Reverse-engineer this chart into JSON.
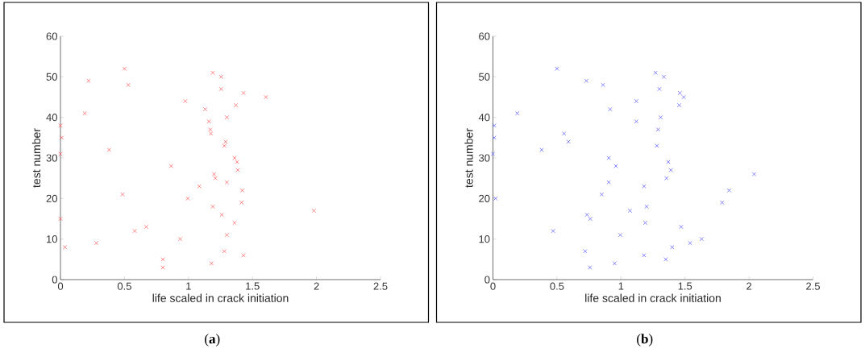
{
  "chart_data": [
    {
      "type": "scatter",
      "xlabel": "life scaled in crack initiation",
      "ylabel": "test number",
      "marker": "cross",
      "xlim": [
        0,
        2.5
      ],
      "ylim": [
        0,
        60
      ],
      "xticks": [
        0,
        0.5,
        1,
        1.5,
        2,
        2.5
      ],
      "yticks": [
        0,
        10,
        20,
        30,
        40,
        50,
        60
      ],
      "annotations": [
        "(**a**)"
      ],
      "series": [
        {
          "color": "#ff5050",
          "x": [
            0,
            0.01,
            0,
            0,
            0.035,
            0.19,
            0.22,
            0.28,
            0.38,
            0.485,
            0.5,
            0.53,
            0.58,
            0.67,
            0.8,
            0.8,
            0.865,
            0.935,
            0.975,
            0.995,
            1.085,
            1.13,
            1.19,
            1.255,
            1.255,
            1.43,
            1.605,
            1.37,
            1.3,
            1.16,
            1.17,
            1.175,
            1.29,
            1.28,
            1.36,
            1.38,
            1.385,
            1.2,
            1.21,
            1.3,
            1.42,
            1.415,
            1.19,
            1.26,
            1.98,
            1.36,
            1.3,
            1.28,
            1.43,
            1.18
          ],
          "values": [
            38,
            35,
            31,
            15,
            8,
            41,
            49,
            9,
            32,
            21,
            52,
            48,
            12,
            13,
            5,
            3,
            28,
            10,
            44,
            20,
            23,
            42,
            51,
            50,
            47,
            46,
            45,
            43,
            40,
            39,
            37,
            36,
            34,
            33,
            30,
            29,
            27,
            26,
            25,
            24,
            22,
            19,
            18,
            16,
            17,
            14,
            11,
            7,
            6,
            4
          ]
        }
      ]
    },
    {
      "type": "scatter",
      "xlabel": "life scaled in crack initiation",
      "ylabel": "test number",
      "marker": "cross",
      "xlim": [
        0,
        2.5
      ],
      "ylim": [
        0,
        60
      ],
      "xticks": [
        0,
        0.5,
        1,
        1.5,
        2,
        2.5
      ],
      "yticks": [
        0,
        10,
        20,
        30,
        40,
        50,
        60
      ],
      "annotations": [
        "(**b**)"
      ],
      "series": [
        {
          "color": "#5050ff",
          "x": [
            0.01,
            0.01,
            0,
            0.02,
            0.19,
            0.38,
            0.5,
            0.47,
            0.555,
            0.59,
            0.73,
            0.72,
            0.735,
            0.76,
            0.757,
            0.86,
            0.85,
            0.905,
            0.905,
            0.915,
            0.96,
            0.95,
            0.995,
            1.07,
            1.12,
            1.12,
            1.18,
            1.2,
            1.19,
            1.18,
            1.27,
            1.335,
            1.3,
            1.31,
            1.29,
            1.28,
            1.37,
            1.39,
            1.355,
            1.35,
            1.4,
            1.47,
            1.54,
            1.63,
            1.46,
            1.49,
            1.455,
            1.79,
            1.845,
            2.04
          ],
          "values": [
            38,
            35,
            31,
            20,
            41,
            32,
            52,
            12,
            36,
            34,
            49,
            7,
            16,
            15,
            3,
            48,
            21,
            30,
            24,
            42,
            28,
            4,
            11,
            17,
            44,
            39,
            23,
            18,
            14,
            6,
            51,
            50,
            47,
            40,
            37,
            33,
            29,
            27,
            25,
            5,
            8,
            13,
            9,
            10,
            46,
            45,
            43,
            19,
            22,
            26
          ]
        }
      ]
    }
  ]
}
